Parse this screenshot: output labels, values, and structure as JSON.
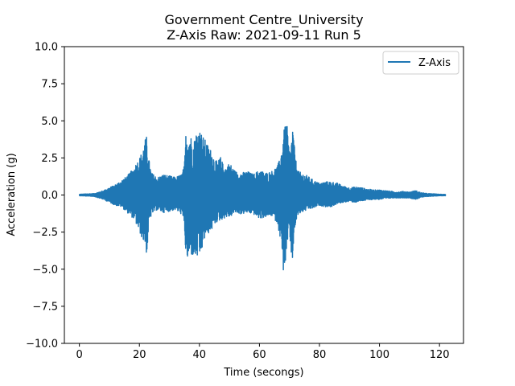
{
  "chart_data": {
    "type": "line",
    "title": "Government Centre_University",
    "subtitle": "Z-Axis Raw: 2021-09-11 Run 5",
    "xlabel": "Time (secongs)",
    "ylabel": "Acceleration (g)",
    "xlim": [
      -5,
      128
    ],
    "ylim": [
      -10,
      10
    ],
    "xticks": [
      0,
      20,
      40,
      60,
      80,
      100,
      120
    ],
    "xtick_labels": [
      "0",
      "20",
      "40",
      "60",
      "80",
      "100",
      "120"
    ],
    "yticks": [
      -10,
      -7.5,
      -5,
      -2.5,
      0,
      2.5,
      5,
      7.5,
      10
    ],
    "ytick_labels": [
      "−10.0",
      "−7.5",
      "−5.0",
      "−2.5",
      "0.0",
      "2.5",
      "5.0",
      "7.5",
      "10.0"
    ],
    "grid": false,
    "legend_position": "top-right",
    "series": [
      {
        "name": "Z-Axis",
        "color": "#1f77b4",
        "envelope": {
          "x": [
            0,
            5,
            8,
            10,
            12,
            14,
            16,
            18,
            19,
            20,
            21,
            22,
            22.5,
            23,
            24,
            26,
            28,
            30,
            32,
            34,
            35,
            35.5,
            36,
            37,
            38,
            39,
            40,
            41,
            42,
            43,
            44,
            45,
            46,
            47,
            48,
            49,
            50,
            52,
            54,
            56,
            58,
            60,
            62,
            64,
            66,
            67,
            68,
            69,
            70,
            70.5,
            71,
            72,
            73,
            74,
            76,
            78,
            80,
            82,
            84,
            86,
            88,
            90,
            92,
            94,
            96,
            98,
            100,
            102,
            104,
            106,
            108,
            110,
            112,
            114,
            116,
            118,
            120,
            122
          ],
          "y_upper": [
            0.05,
            0.1,
            0.3,
            0.5,
            0.7,
            1.0,
            1.3,
            1.8,
            2.2,
            2.5,
            3.0,
            3.8,
            4.0,
            2.6,
            1.5,
            1.2,
            1.4,
            1.3,
            1.2,
            1.4,
            2.0,
            4.2,
            4.2,
            4.1,
            3.5,
            4.3,
            4.5,
            4.0,
            3.7,
            3.3,
            3.0,
            2.5,
            2.2,
            2.6,
            2.0,
            1.9,
            2.2,
            1.6,
            1.5,
            1.6,
            1.4,
            1.7,
            1.5,
            1.6,
            2.0,
            2.5,
            4.2,
            5.1,
            3.0,
            3.2,
            4.8,
            2.5,
            1.6,
            1.5,
            1.3,
            1.0,
            0.8,
            0.9,
            0.9,
            0.8,
            0.6,
            0.5,
            0.55,
            0.5,
            0.4,
            0.35,
            0.35,
            0.3,
            0.25,
            0.2,
            0.25,
            0.2,
            0.3,
            0.15,
            0.1,
            0.08,
            0.05,
            0.05
          ],
          "y_lower": [
            -0.05,
            -0.1,
            -0.3,
            -0.5,
            -0.7,
            -0.8,
            -1.2,
            -1.6,
            -2.0,
            -2.5,
            -3.0,
            -3.4,
            -4.2,
            -2.4,
            -1.3,
            -1.0,
            -1.2,
            -1.1,
            -1.0,
            -1.3,
            -2.0,
            -4.3,
            -4.4,
            -4.0,
            -4.2,
            -4.2,
            -4.3,
            -3.6,
            -2.8,
            -2.6,
            -2.4,
            -2.0,
            -1.8,
            -1.7,
            -1.6,
            -1.5,
            -1.5,
            -1.2,
            -1.3,
            -1.2,
            -1.3,
            -1.6,
            -1.5,
            -1.4,
            -1.9,
            -3.0,
            -5.2,
            -4.3,
            -2.0,
            -4.4,
            -4.4,
            -2.0,
            -1.3,
            -1.2,
            -1.0,
            -0.9,
            -0.7,
            -0.8,
            -0.8,
            -0.6,
            -0.5,
            -0.45,
            -0.5,
            -0.4,
            -0.35,
            -0.3,
            -0.3,
            -0.25,
            -0.2,
            -0.2,
            -0.2,
            -0.2,
            -0.3,
            -0.15,
            -0.1,
            -0.08,
            -0.05,
            -0.05
          ]
        }
      }
    ]
  }
}
